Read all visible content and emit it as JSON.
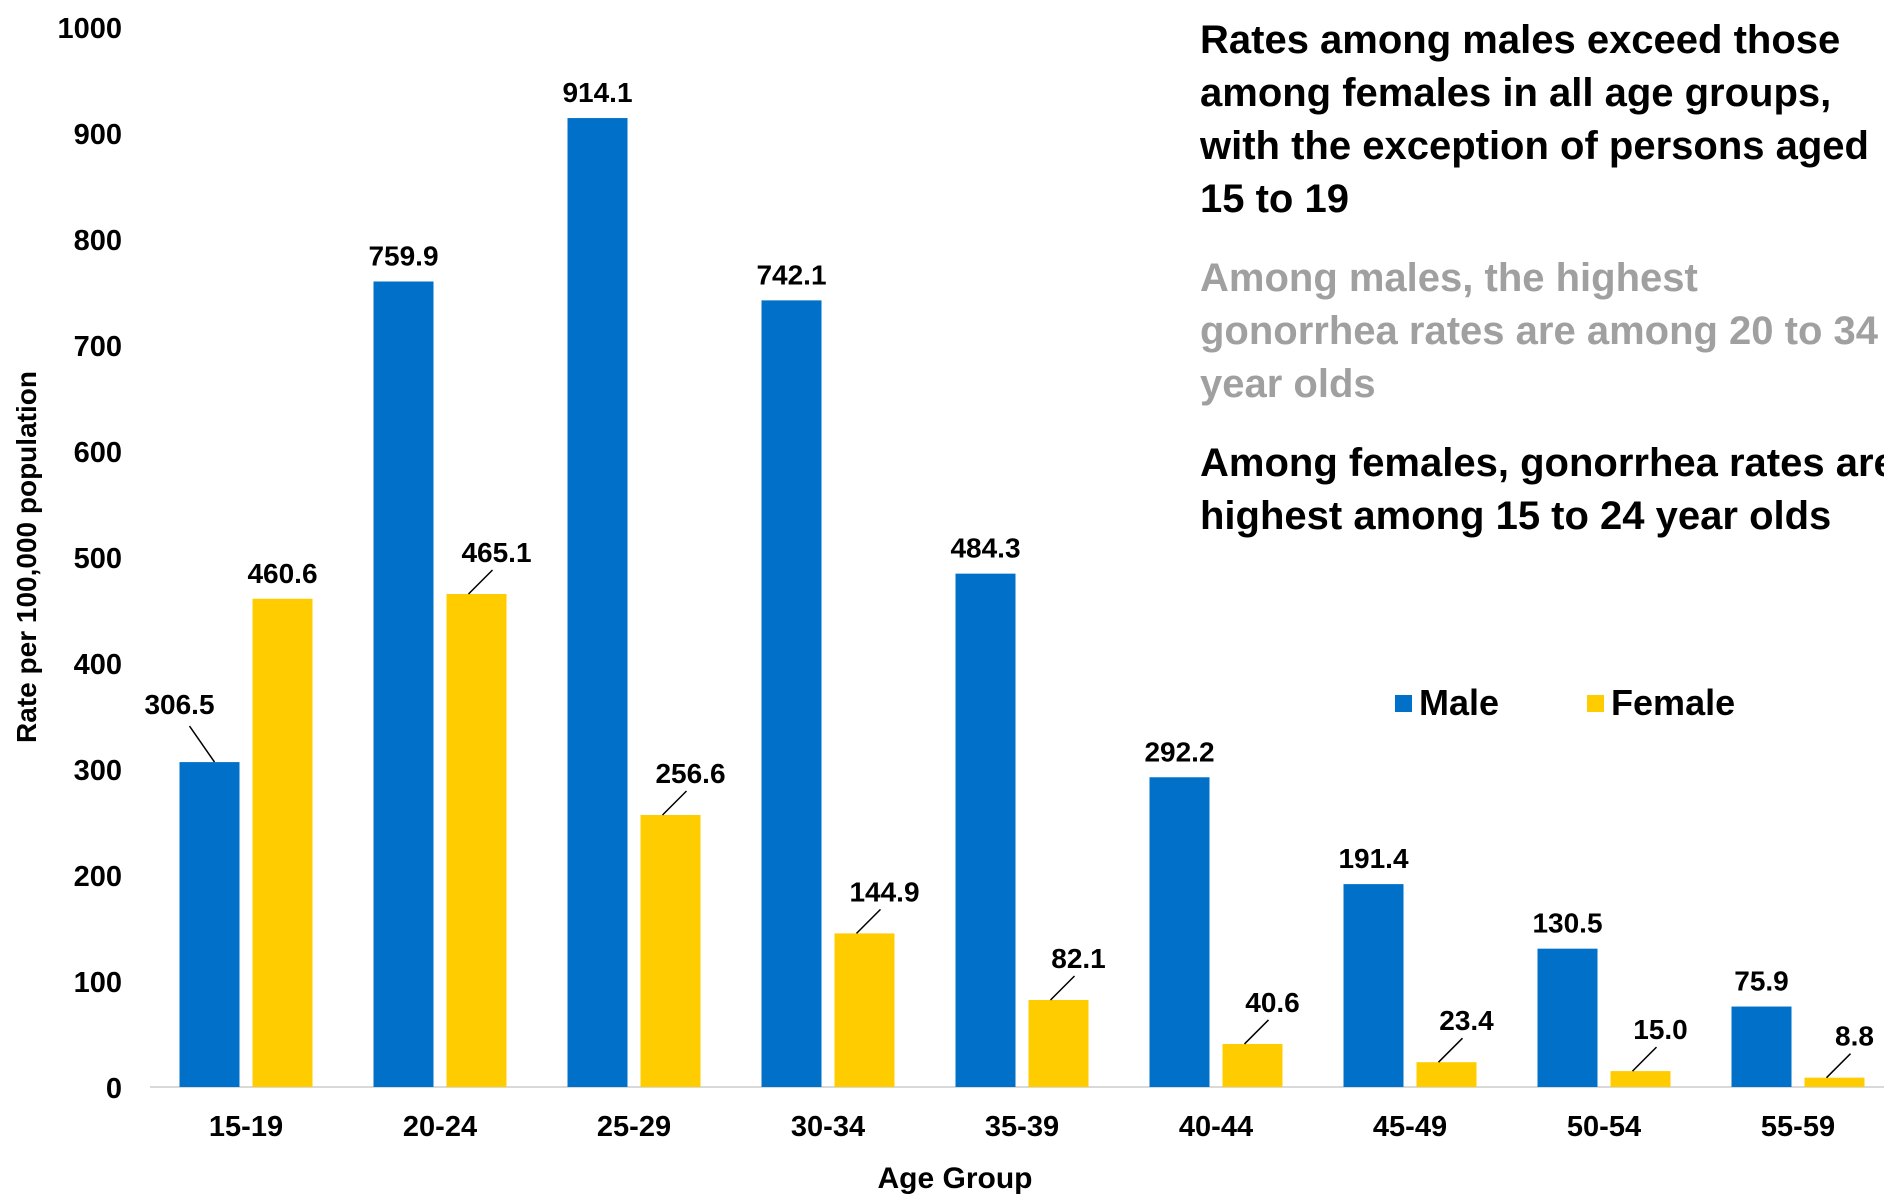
{
  "chart_data": {
    "type": "bar",
    "categories": [
      "15-19",
      "20-24",
      "25-29",
      "30-34",
      "35-39",
      "40-44",
      "45-49",
      "50-54",
      "55-59"
    ],
    "series": [
      {
        "name": "Male",
        "color": "#0070C8",
        "values": [
          306.5,
          759.9,
          914.1,
          742.1,
          484.3,
          292.2,
          191.4,
          130.5,
          75.9
        ],
        "labels": [
          "306.5",
          "759.9",
          "914.1",
          "742.1",
          "484.3",
          "292.2",
          "191.4",
          "130.5",
          "75.9"
        ]
      },
      {
        "name": "Female",
        "color": "#FFCC00",
        "values": [
          460.6,
          465.1,
          256.6,
          144.9,
          82.1,
          40.6,
          23.4,
          15.0,
          8.8
        ],
        "labels": [
          "460.6",
          "465.1",
          "256.6",
          "144.9",
          "82.1",
          "40.6",
          "23.4",
          "15.0",
          "8.8"
        ]
      }
    ],
    "xlabel": "Age Group",
    "ylabel": "Rate per 100,000 population",
    "ylim": [
      0,
      1000
    ],
    "yticks": [
      0,
      100,
      200,
      300,
      400,
      500,
      600,
      700,
      800,
      900,
      1000
    ],
    "grid": false,
    "legend_position": "right"
  },
  "annotations": [
    {
      "lines": [
        "Rates among males exceed those",
        "among females in all age groups,",
        "with the exception of persons aged",
        "15 to 19"
      ],
      "color": "#000000"
    },
    {
      "lines": [
        "Among males, the highest",
        "gonorrhea rates are among 20 to 34",
        "year olds"
      ],
      "color": "#A0A0A0"
    },
    {
      "lines": [
        "Among females, gonorrhea rates are",
        "highest among 15 to 24 year olds"
      ],
      "color": "#000000"
    }
  ]
}
